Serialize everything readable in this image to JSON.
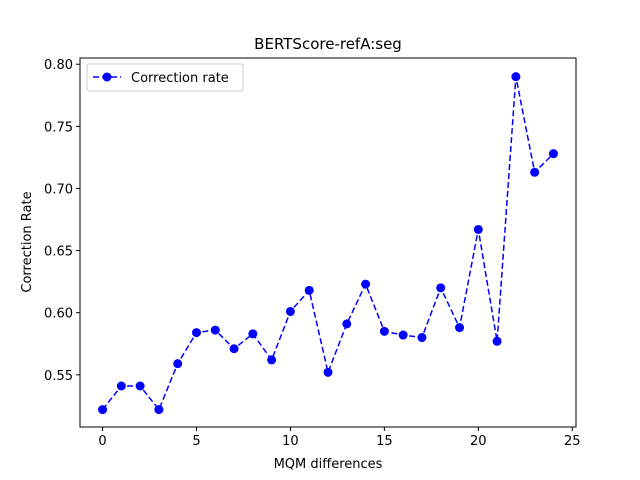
{
  "chart_data": {
    "type": "line",
    "title": "BERTScore-refA:seg",
    "xlabel": "MQM differences",
    "ylabel": "Correction Rate",
    "xlim": [
      -1.2,
      25.2
    ],
    "ylim": [
      0.508,
      0.805
    ],
    "xticks": [
      0,
      5,
      10,
      15,
      20,
      25
    ],
    "xtick_labels": [
      "0",
      "5",
      "10",
      "15",
      "20",
      "25"
    ],
    "yticks": [
      0.55,
      0.6,
      0.65,
      0.7,
      0.75,
      0.8
    ],
    "ytick_labels": [
      "0.55",
      "0.60",
      "0.65",
      "0.70",
      "0.75",
      "0.80"
    ],
    "grid": false,
    "legend_position": "top-left",
    "series": [
      {
        "name": "Correction rate",
        "color": "#0000ff",
        "line_style": "dashed",
        "marker": "circle",
        "x": [
          0,
          1,
          2,
          3,
          4,
          5,
          6,
          7,
          8,
          9,
          10,
          11,
          12,
          13,
          14,
          15,
          16,
          17,
          18,
          19,
          20,
          21,
          22,
          23,
          24
        ],
        "y": [
          0.522,
          0.541,
          0.541,
          0.522,
          0.559,
          0.584,
          0.586,
          0.571,
          0.583,
          0.562,
          0.601,
          0.618,
          0.552,
          0.591,
          0.623,
          0.585,
          0.582,
          0.58,
          0.62,
          0.588,
          0.667,
          0.577,
          0.79,
          0.713,
          0.728
        ]
      }
    ]
  }
}
